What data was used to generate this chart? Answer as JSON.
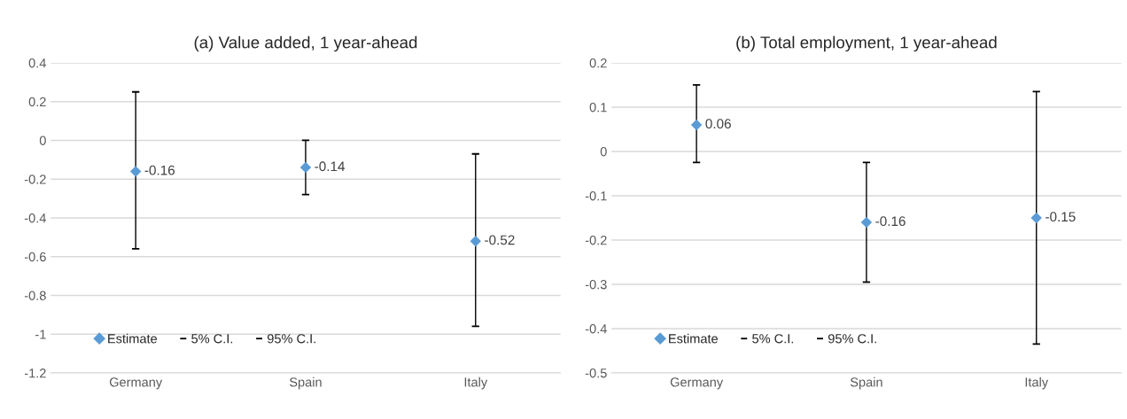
{
  "chart_data": [
    {
      "type": "scatter",
      "title": "(a) Value added, 1 year-ahead",
      "categories": [
        "Germany",
        "Spain",
        "Italy"
      ],
      "series": [
        {
          "name": "Estimate",
          "color": "#5b9bd5",
          "values": [
            -0.16,
            -0.14,
            -0.52
          ],
          "errors": [
            [
              -0.56,
              0.25
            ],
            [
              -0.28,
              0.0
            ],
            [
              -0.96,
              -0.07
            ]
          ]
        }
      ],
      "marker": "diamond",
      "data_labels": true,
      "annotations": [
        "5% C.I.",
        "95% C.I."
      ],
      "ylim": [
        -1.2,
        0.4
      ],
      "yticks": [
        -1.2,
        -1,
        -0.8,
        -0.6,
        -0.4,
        -0.2,
        0,
        0.2,
        0.4
      ],
      "grid": "y",
      "legend": "bottom left"
    },
    {
      "type": "scatter",
      "title": "(b) Total employment, 1 year-ahead",
      "categories": [
        "Germany",
        "Spain",
        "Italy"
      ],
      "series": [
        {
          "name": "Estimate",
          "color": "#5b9bd5",
          "values": [
            0.06,
            -0.16,
            -0.15
          ],
          "errors": [
            [
              -0.025,
              0.15
            ],
            [
              -0.295,
              -0.025
            ],
            [
              -0.435,
              0.135
            ]
          ]
        }
      ],
      "marker": "diamond",
      "data_labels": true,
      "annotations": [
        "5% C.I.",
        "95% C.I."
      ],
      "ylim": [
        -0.5,
        0.2
      ],
      "yticks": [
        -0.5,
        -0.4,
        -0.3,
        -0.2,
        -0.1,
        0,
        0.1,
        0.2
      ],
      "grid": "y",
      "legend": "bottom left"
    }
  ]
}
